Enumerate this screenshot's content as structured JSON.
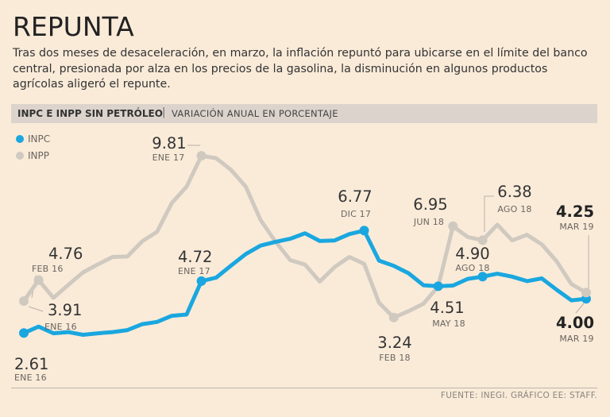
{
  "header": {
    "title": "REPUNTA",
    "subtitle": "Tras dos meses de desaceleración, en marzo, la inflación repuntó para ubicarse en el límite del banco central, presionada por alza en los precios de la gasolina, la disminución en algunos productos agrícolas aligeró el repunte.",
    "band_strong": "INPC E INPP SIN PETRÓLEO",
    "band_sep": "|",
    "band_light": "VARIACIÓN ANUAL EN PORCENTAJE"
  },
  "footer": {
    "source": "FUENTE: INEGI. GRÁFICO EE: STAFF."
  },
  "colors": {
    "inpc": "#1aa7df",
    "inpp": "#d0c9c0",
    "background": "#faebd9"
  },
  "chart_data": {
    "type": "line",
    "title": "INPC E INPP SIN PETRÓLEO",
    "subtitle": "VARIACIÓN ANUAL EN PORCENTAJE",
    "x_start": "ENE 16",
    "x_end": "MAR 19",
    "ylim": [
      2.2,
      10.2
    ],
    "legend": [
      "INPC",
      "INPP"
    ],
    "series": [
      {
        "name": "INPC",
        "values": [
          2.61,
          2.87,
          2.6,
          2.65,
          2.54,
          2.6,
          2.65,
          2.73,
          2.97,
          3.06,
          3.31,
          3.36,
          4.72,
          4.86,
          5.35,
          5.82,
          6.16,
          6.31,
          6.44,
          6.66,
          6.35,
          6.37,
          6.63,
          6.77,
          5.55,
          5.34,
          5.04,
          4.55,
          4.51,
          4.54,
          4.81,
          4.9,
          5.02,
          4.9,
          4.72,
          4.83,
          4.37,
          3.94,
          4.0
        ]
      },
      {
        "name": "INPP",
        "values": [
          3.91,
          4.76,
          4.04,
          4.56,
          5.07,
          5.4,
          5.7,
          5.72,
          6.34,
          6.72,
          7.89,
          8.55,
          9.81,
          9.71,
          9.24,
          8.55,
          7.2,
          6.33,
          5.57,
          5.39,
          4.7,
          5.29,
          5.7,
          5.42,
          3.84,
          3.24,
          3.5,
          3.8,
          4.5,
          6.95,
          6.51,
          6.38,
          7.01,
          6.37,
          6.6,
          6.21,
          5.53,
          4.6,
          4.25
        ]
      }
    ],
    "annotations": [
      {
        "series": "INPC",
        "index": 0,
        "value": "2.61",
        "label": "ENE 16"
      },
      {
        "series": "INPC",
        "index": 12,
        "value": "4.72",
        "label": "ENE 17"
      },
      {
        "series": "INPC",
        "index": 23,
        "value": "6.77",
        "label": "DIC 17"
      },
      {
        "series": "INPC",
        "index": 28,
        "value": "4.51",
        "label": "MAY 18"
      },
      {
        "series": "INPC",
        "index": 31,
        "value": "4.90",
        "label": "AGO 18"
      },
      {
        "series": "INPC",
        "index": 38,
        "value": "4.00",
        "label": "MAR 19"
      },
      {
        "series": "INPP",
        "index": 0,
        "value": "3.91",
        "label": "ENE 16"
      },
      {
        "series": "INPP",
        "index": 1,
        "value": "4.76",
        "label": "FEB 16"
      },
      {
        "series": "INPP",
        "index": 12,
        "value": "9.81",
        "label": "ENE 17"
      },
      {
        "series": "INPP",
        "index": 25,
        "value": "3.24",
        "label": "FEB 18"
      },
      {
        "series": "INPP",
        "index": 29,
        "value": "6.95",
        "label": "JUN 18"
      },
      {
        "series": "INPP",
        "index": 31,
        "value": "6.38",
        "label": "AGO 18"
      },
      {
        "series": "INPP",
        "index": 38,
        "value": "4.25",
        "label": "MAR 19"
      }
    ]
  }
}
